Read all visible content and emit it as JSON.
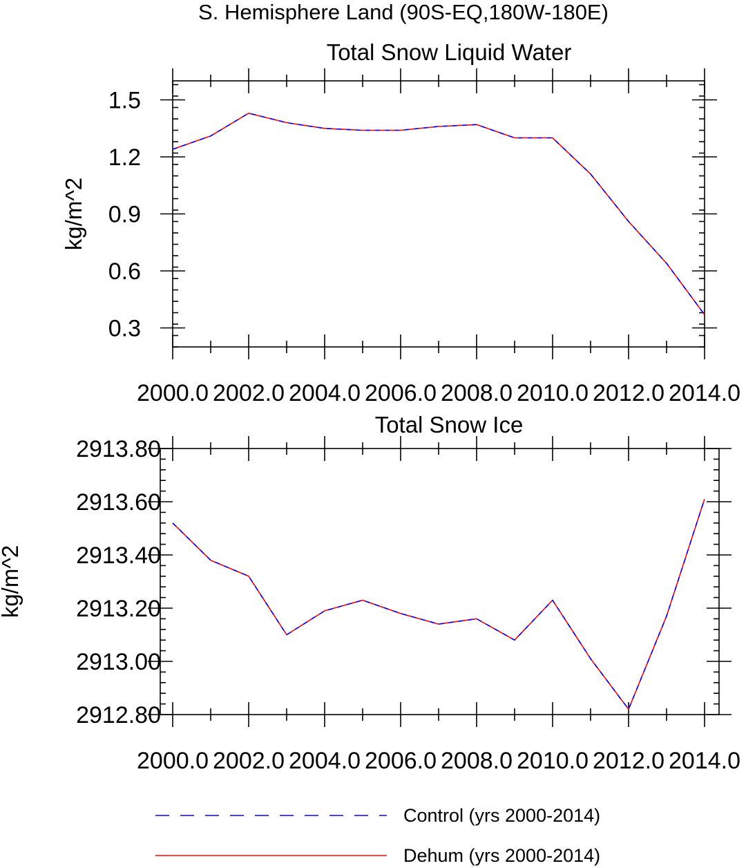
{
  "figure": {
    "suptitle": "S. Hemisphere Land (90S-EQ,180W-180E)"
  },
  "legend": {
    "items": [
      {
        "label": "Control (yrs 2000-2014)",
        "color": "#0000ff",
        "style": "dashed"
      },
      {
        "label": "Dehum (yrs 2000-2014)",
        "color": "#ff0000",
        "style": "solid"
      }
    ]
  },
  "chart_data": [
    {
      "type": "line",
      "title": "Total Snow Liquid Water",
      "xlabel": "",
      "ylabel": "kg/m^2",
      "xlim": [
        2000,
        2014
      ],
      "ylim": [
        0.2,
        1.6
      ],
      "xticks": [
        2000,
        2002,
        2004,
        2006,
        2008,
        2010,
        2012,
        2014
      ],
      "xtick_labels": [
        "2000.0",
        "2002.0",
        "2004.0",
        "2006.0",
        "2008.0",
        "2010.0",
        "2012.0",
        "2014.0"
      ],
      "yticks": [
        0.3,
        0.6,
        0.9,
        1.2,
        1.5
      ],
      "ytick_labels": [
        "0.3",
        "0.6",
        "0.9",
        "1.2",
        "1.5"
      ],
      "yminor_step": 0.06,
      "grid": false,
      "x": [
        2000,
        2001,
        2002,
        2003,
        2004,
        2005,
        2006,
        2007,
        2008,
        2009,
        2010,
        2011,
        2012,
        2013,
        2014
      ],
      "series": [
        {
          "name": "Control (yrs 2000-2014)",
          "color": "#0000ff",
          "style": "dashed",
          "values": [
            1.24,
            1.31,
            1.43,
            1.38,
            1.35,
            1.34,
            1.34,
            1.36,
            1.37,
            1.3,
            1.3,
            1.11,
            0.86,
            0.64,
            0.37
          ]
        },
        {
          "name": "Dehum (yrs 2000-2014)",
          "color": "#ff0000",
          "style": "solid",
          "values": [
            1.24,
            1.31,
            1.43,
            1.38,
            1.35,
            1.34,
            1.34,
            1.36,
            1.37,
            1.3,
            1.3,
            1.11,
            0.86,
            0.64,
            0.37
          ]
        }
      ]
    },
    {
      "type": "line",
      "title": "Total Snow Ice",
      "xlabel": "",
      "ylabel": "kg/m^2",
      "xlim": [
        2000,
        2014
      ],
      "ylim": [
        2912.8,
        2913.8
      ],
      "xticks": [
        2000,
        2002,
        2004,
        2006,
        2008,
        2010,
        2012,
        2014
      ],
      "xtick_labels": [
        "2000.0",
        "2002.0",
        "2004.0",
        "2006.0",
        "2008.0",
        "2010.0",
        "2012.0",
        "2014.0"
      ],
      "yticks": [
        2912.8,
        2913.0,
        2913.2,
        2913.4,
        2913.6,
        2913.8
      ],
      "ytick_labels": [
        "2912.80",
        "2913.00",
        "2913.20",
        "2913.40",
        "2913.60",
        "2913.80"
      ],
      "yminor_step": 0.04,
      "grid": false,
      "x": [
        2000,
        2001,
        2002,
        2003,
        2004,
        2005,
        2006,
        2007,
        2008,
        2009,
        2010,
        2011,
        2012,
        2013,
        2014
      ],
      "series": [
        {
          "name": "Control (yrs 2000-2014)",
          "color": "#0000ff",
          "style": "dashed",
          "values": [
            2913.52,
            2913.38,
            2913.32,
            2913.1,
            2913.19,
            2913.23,
            2913.18,
            2913.14,
            2913.16,
            2913.08,
            2913.23,
            2913.01,
            2912.82,
            2913.17,
            2913.61
          ]
        },
        {
          "name": "Dehum (yrs 2000-2014)",
          "color": "#ff0000",
          "style": "solid",
          "values": [
            2913.52,
            2913.38,
            2913.32,
            2913.1,
            2913.19,
            2913.23,
            2913.18,
            2913.14,
            2913.16,
            2913.08,
            2913.23,
            2913.01,
            2912.82,
            2913.17,
            2913.61
          ]
        }
      ]
    }
  ]
}
